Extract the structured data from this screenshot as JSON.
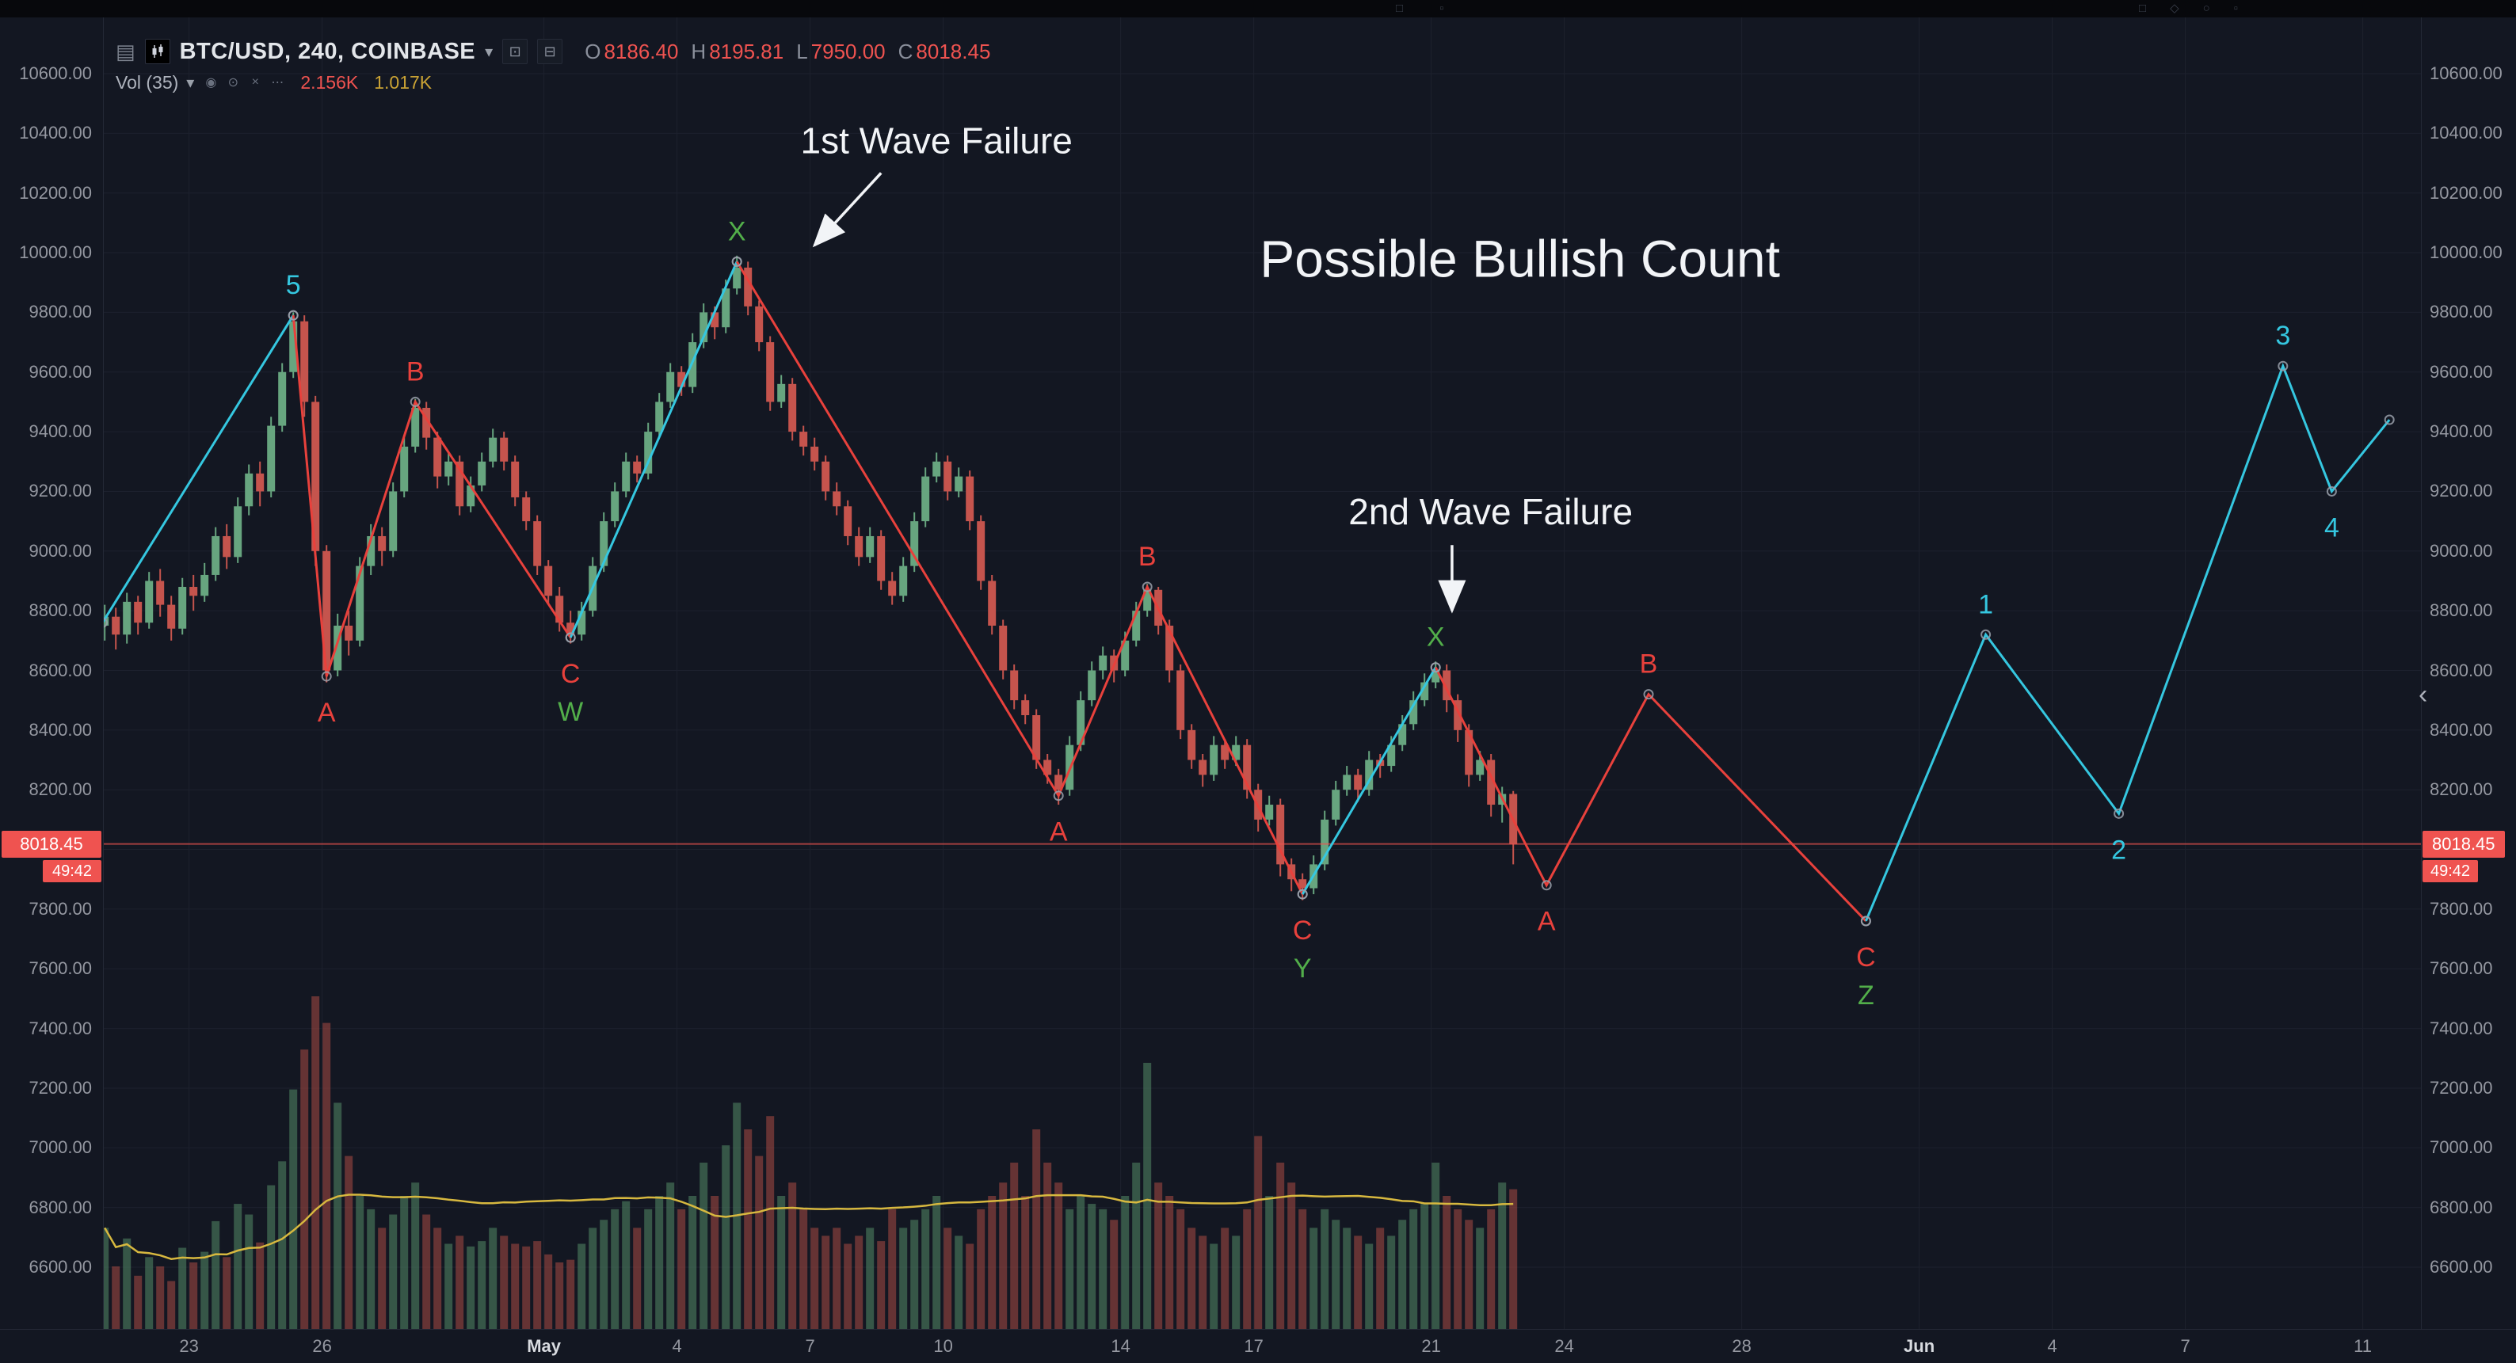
{
  "top_toolbar": {
    "center_icons": [
      {
        "name": "text-tool-icon",
        "glyph": "□"
      },
      {
        "name": "template-icon",
        "glyph": "▫"
      }
    ],
    "right_icons": [
      {
        "name": "layout-panel-icon",
        "glyph": "□"
      },
      {
        "name": "alerts-icon",
        "glyph": "◇"
      },
      {
        "name": "help-icon",
        "glyph": "○"
      },
      {
        "name": "fullscreen-icon",
        "glyph": "▫"
      }
    ]
  },
  "header": {
    "symbol": "BTC/USD, 240, COINBASE",
    "symbol_caret": "▾",
    "ohlc": {
      "o_label": "O",
      "o": "8186.40",
      "h_label": "H",
      "h": "8195.81",
      "l_label": "L",
      "l": "7950.00",
      "c_label": "C",
      "c": "8018.45"
    },
    "indicator": {
      "name": "Vol (35)",
      "caret": "▾",
      "icons": [
        {
          "name": "visibility-icon",
          "glyph": "◉"
        },
        {
          "name": "settings-icon",
          "glyph": "⊙"
        },
        {
          "name": "remove-icon",
          "glyph": "×"
        },
        {
          "name": "more-icon",
          "glyph": "⋯"
        }
      ],
      "current": "2.156K",
      "ma": "1.017K"
    }
  },
  "price_axis": {
    "ticks": [
      10600,
      10400,
      10200,
      10000,
      9800,
      9600,
      9400,
      9200,
      9000,
      8800,
      8600,
      8400,
      8200,
      7800,
      7600,
      7400,
      7200,
      7000,
      6800,
      6600
    ],
    "current_price": "8018.45",
    "countdown": "49:42",
    "collapse_glyph": "‹"
  },
  "time_axis": {
    "ticks": [
      {
        "label": "23",
        "day": 2
      },
      {
        "label": "26",
        "day": 5
      },
      {
        "label": "May",
        "day": 10,
        "month": true
      },
      {
        "label": "4",
        "day": 13
      },
      {
        "label": "7",
        "day": 16
      },
      {
        "label": "10",
        "day": 19
      },
      {
        "label": "14",
        "day": 23
      },
      {
        "label": "17",
        "day": 26
      },
      {
        "label": "21",
        "day": 30
      },
      {
        "label": "24",
        "day": 33
      },
      {
        "label": "28",
        "day": 37
      },
      {
        "label": "Jun",
        "day": 41,
        "month": true
      },
      {
        "label": "4",
        "day": 44
      },
      {
        "label": "7",
        "day": 47
      },
      {
        "label": "11",
        "day": 51
      }
    ]
  },
  "chart_data": {
    "type": "candlestick",
    "symbol": "BTC/USD",
    "interval": "240",
    "exchange": "COINBASE",
    "title": {
      "text": "Possible Bullish Count",
      "t": 32.0,
      "p": 9966
    },
    "price_range_visible": [
      6600,
      10600
    ],
    "price_grid_step": 200,
    "x_unit": "days (0 = left-most candle session, ticks labeled Apr 23 – Jun 11)",
    "candle_t0": 0.1,
    "candle_dt": 0.25,
    "price_line": 8018.45,
    "vol_axis_max": 2500,
    "vol_ma_window": 35,
    "candles": [
      [
        8750,
        8820,
        8700,
        8780,
        760
      ],
      [
        8780,
        8810,
        8670,
        8720,
        470
      ],
      [
        8720,
        8860,
        8690,
        8830,
        680
      ],
      [
        8830,
        8850,
        8720,
        8760,
        400
      ],
      [
        8760,
        8930,
        8740,
        8900,
        540
      ],
      [
        8900,
        8940,
        8780,
        8820,
        470
      ],
      [
        8820,
        8850,
        8700,
        8740,
        360
      ],
      [
        8740,
        8910,
        8720,
        8880,
        610
      ],
      [
        8880,
        8920,
        8800,
        8850,
        500
      ],
      [
        8850,
        8960,
        8830,
        8920,
        580
      ],
      [
        8920,
        9080,
        8900,
        9050,
        810
      ],
      [
        9050,
        9090,
        8940,
        8980,
        540
      ],
      [
        8980,
        9180,
        8960,
        9150,
        940
      ],
      [
        9150,
        9290,
        9120,
        9260,
        860
      ],
      [
        9260,
        9300,
        9150,
        9200,
        650
      ],
      [
        9200,
        9450,
        9180,
        9420,
        1080
      ],
      [
        9420,
        9630,
        9400,
        9600,
        1260
      ],
      [
        9600,
        9800,
        9580,
        9770,
        1800
      ],
      [
        9770,
        9790,
        9450,
        9500,
        2100
      ],
      [
        9500,
        9520,
        8950,
        9000,
        2500
      ],
      [
        9000,
        9020,
        8560,
        8600,
        2300
      ],
      [
        8600,
        8790,
        8580,
        8750,
        1700
      ],
      [
        8750,
        8800,
        8650,
        8700,
        1300
      ],
      [
        8700,
        8980,
        8680,
        8950,
        1000
      ],
      [
        8950,
        9090,
        8920,
        9050,
        900
      ],
      [
        9050,
        9080,
        8950,
        9000,
        760
      ],
      [
        9000,
        9230,
        8980,
        9200,
        860
      ],
      [
        9200,
        9380,
        9180,
        9350,
        1000
      ],
      [
        9350,
        9510,
        9330,
        9480,
        1100
      ],
      [
        9480,
        9500,
        9340,
        9380,
        860
      ],
      [
        9380,
        9400,
        9210,
        9250,
        760
      ],
      [
        9250,
        9330,
        9220,
        9300,
        640
      ],
      [
        9300,
        9320,
        9120,
        9150,
        700
      ],
      [
        9150,
        9250,
        9130,
        9220,
        620
      ],
      [
        9220,
        9330,
        9200,
        9300,
        660
      ],
      [
        9300,
        9410,
        9280,
        9380,
        760
      ],
      [
        9380,
        9400,
        9270,
        9300,
        700
      ],
      [
        9300,
        9320,
        9150,
        9180,
        640
      ],
      [
        9180,
        9200,
        9070,
        9100,
        620
      ],
      [
        9100,
        9120,
        8920,
        8950,
        660
      ],
      [
        8950,
        8970,
        8820,
        8850,
        560
      ],
      [
        8850,
        8880,
        8730,
        8760,
        500
      ],
      [
        8760,
        8800,
        8690,
        8720,
        520
      ],
      [
        8720,
        8830,
        8700,
        8800,
        640
      ],
      [
        8800,
        8980,
        8780,
        8950,
        760
      ],
      [
        8950,
        9130,
        8930,
        9100,
        820
      ],
      [
        9100,
        9230,
        9080,
        9200,
        900
      ],
      [
        9200,
        9330,
        9180,
        9300,
        960
      ],
      [
        9300,
        9320,
        9230,
        9260,
        760
      ],
      [
        9260,
        9430,
        9240,
        9400,
        900
      ],
      [
        9400,
        9530,
        9380,
        9500,
        1000
      ],
      [
        9500,
        9630,
        9480,
        9600,
        1100
      ],
      [
        9600,
        9620,
        9520,
        9550,
        900
      ],
      [
        9550,
        9730,
        9530,
        9700,
        1000
      ],
      [
        9700,
        9830,
        9680,
        9800,
        1250
      ],
      [
        9800,
        9820,
        9710,
        9750,
        1000
      ],
      [
        9750,
        9910,
        9730,
        9880,
        1380
      ],
      [
        9880,
        9990,
        9860,
        9950,
        1700
      ],
      [
        9950,
        9970,
        9790,
        9820,
        1500
      ],
      [
        9820,
        9840,
        9670,
        9700,
        1300
      ],
      [
        9700,
        9720,
        9470,
        9500,
        1600
      ],
      [
        9500,
        9590,
        9480,
        9560,
        1000
      ],
      [
        9560,
        9580,
        9370,
        9400,
        1100
      ],
      [
        9400,
        9420,
        9320,
        9350,
        900
      ],
      [
        9350,
        9380,
        9270,
        9300,
        760
      ],
      [
        9300,
        9320,
        9170,
        9200,
        700
      ],
      [
        9200,
        9230,
        9120,
        9150,
        760
      ],
      [
        9150,
        9170,
        9020,
        9050,
        640
      ],
      [
        9050,
        9080,
        8950,
        8980,
        700
      ],
      [
        8980,
        9080,
        8960,
        9050,
        760
      ],
      [
        9050,
        9070,
        8870,
        8900,
        660
      ],
      [
        8900,
        8930,
        8820,
        8850,
        900
      ],
      [
        8850,
        8980,
        8830,
        8950,
        760
      ],
      [
        8950,
        9130,
        8930,
        9100,
        820
      ],
      [
        9100,
        9280,
        9080,
        9250,
        900
      ],
      [
        9250,
        9330,
        9230,
        9300,
        1000
      ],
      [
        9300,
        9320,
        9170,
        9200,
        760
      ],
      [
        9200,
        9280,
        9180,
        9250,
        700
      ],
      [
        9250,
        9270,
        9070,
        9100,
        640
      ],
      [
        9100,
        9120,
        8870,
        8900,
        900
      ],
      [
        8900,
        8920,
        8720,
        8750,
        1000
      ],
      [
        8750,
        8770,
        8570,
        8600,
        1100
      ],
      [
        8600,
        8620,
        8470,
        8500,
        1250
      ],
      [
        8500,
        8520,
        8420,
        8450,
        1000
      ],
      [
        8450,
        8470,
        8270,
        8300,
        1500
      ],
      [
        8300,
        8320,
        8220,
        8250,
        1250
      ],
      [
        8250,
        8270,
        8150,
        8200,
        1100
      ],
      [
        8200,
        8380,
        8180,
        8350,
        900
      ],
      [
        8350,
        8530,
        8330,
        8500,
        1000
      ],
      [
        8500,
        8630,
        8480,
        8600,
        940
      ],
      [
        8600,
        8680,
        8570,
        8650,
        900
      ],
      [
        8650,
        8670,
        8560,
        8600,
        820
      ],
      [
        8600,
        8730,
        8580,
        8700,
        1000
      ],
      [
        8700,
        8830,
        8680,
        8800,
        1250
      ],
      [
        8800,
        8890,
        8780,
        8870,
        2000
      ],
      [
        8870,
        8880,
        8720,
        8750,
        1100
      ],
      [
        8750,
        8770,
        8560,
        8600,
        1000
      ],
      [
        8600,
        8620,
        8370,
        8400,
        900
      ],
      [
        8400,
        8420,
        8270,
        8300,
        760
      ],
      [
        8300,
        8320,
        8210,
        8250,
        700
      ],
      [
        8250,
        8380,
        8230,
        8350,
        640
      ],
      [
        8350,
        8370,
        8270,
        8300,
        760
      ],
      [
        8300,
        8380,
        8280,
        8350,
        700
      ],
      [
        8350,
        8370,
        8170,
        8200,
        900
      ],
      [
        8200,
        8220,
        8060,
        8100,
        1450
      ],
      [
        8100,
        8180,
        8080,
        8150,
        1000
      ],
      [
        8150,
        8170,
        7910,
        7950,
        1250
      ],
      [
        7950,
        7970,
        7860,
        7900,
        1100
      ],
      [
        7900,
        7920,
        7830,
        7870,
        900
      ],
      [
        7870,
        7980,
        7850,
        7950,
        760
      ],
      [
        7950,
        8130,
        7930,
        8100,
        900
      ],
      [
        8100,
        8230,
        8080,
        8200,
        820
      ],
      [
        8200,
        8280,
        8180,
        8250,
        760
      ],
      [
        8250,
        8270,
        8160,
        8200,
        700
      ],
      [
        8200,
        8330,
        8180,
        8300,
        640
      ],
      [
        8300,
        8320,
        8240,
        8280,
        760
      ],
      [
        8280,
        8380,
        8260,
        8350,
        700
      ],
      [
        8350,
        8450,
        8330,
        8420,
        820
      ],
      [
        8420,
        8530,
        8400,
        8500,
        900
      ],
      [
        8500,
        8590,
        8480,
        8560,
        940
      ],
      [
        8560,
        8630,
        8540,
        8600,
        1250
      ],
      [
        8600,
        8620,
        8460,
        8500,
        1000
      ],
      [
        8500,
        8520,
        8360,
        8400,
        900
      ],
      [
        8400,
        8420,
        8210,
        8250,
        820
      ],
      [
        8250,
        8330,
        8230,
        8300,
        760
      ],
      [
        8300,
        8320,
        8110,
        8150,
        900
      ],
      [
        8150,
        8210,
        8090,
        8186,
        1100
      ],
      [
        8186,
        8196,
        7950,
        8018,
        1050
      ]
    ],
    "waves": [
      {
        "color": "cyan",
        "points": [
          [
            0.05,
            8760
          ],
          [
            4.35,
            9790
          ]
        ]
      },
      {
        "color": "red",
        "points": [
          [
            4.35,
            9790
          ],
          [
            5.1,
            8580
          ],
          [
            7.1,
            9500
          ],
          [
            10.6,
            8710
          ]
        ]
      },
      {
        "color": "cyan",
        "points": [
          [
            10.6,
            8710
          ],
          [
            14.35,
            9970
          ]
        ]
      },
      {
        "color": "red",
        "points": [
          [
            14.35,
            9970
          ],
          [
            21.6,
            8180
          ],
          [
            23.6,
            8880
          ],
          [
            27.1,
            7850
          ]
        ]
      },
      {
        "color": "cyan",
        "points": [
          [
            27.1,
            7850
          ],
          [
            30.1,
            8610
          ]
        ]
      },
      {
        "color": "red",
        "points": [
          [
            30.1,
            8610
          ],
          [
            32.6,
            7880
          ],
          [
            34.9,
            8520
          ],
          [
            39.8,
            7760
          ]
        ]
      },
      {
        "color": "cyan",
        "points": [
          [
            39.8,
            7760
          ],
          [
            42.5,
            8720
          ],
          [
            45.5,
            8120
          ],
          [
            49.2,
            9620
          ],
          [
            50.3,
            9200
          ],
          [
            51.6,
            9440
          ]
        ]
      }
    ],
    "wave_labels": [
      {
        "t": 4.35,
        "p": 9790,
        "text": "5",
        "color": "cyan",
        "pos": "above"
      },
      {
        "t": 5.1,
        "p": 8580,
        "text": "A",
        "color": "red",
        "pos": "below"
      },
      {
        "t": 7.1,
        "p": 9500,
        "text": "B",
        "color": "red",
        "pos": "above"
      },
      {
        "t": 10.6,
        "p": 8710,
        "text": "C",
        "color": "red",
        "pos": "below"
      },
      {
        "t": 10.6,
        "p": 8710,
        "text": "W",
        "color": "green",
        "pos": "below2"
      },
      {
        "t": 14.35,
        "p": 9970,
        "text": "X",
        "color": "green",
        "pos": "above"
      },
      {
        "t": 21.6,
        "p": 8180,
        "text": "A",
        "color": "red",
        "pos": "below"
      },
      {
        "t": 23.6,
        "p": 8880,
        "text": "B",
        "color": "red",
        "pos": "above"
      },
      {
        "t": 27.1,
        "p": 7850,
        "text": "C",
        "color": "red",
        "pos": "below"
      },
      {
        "t": 27.1,
        "p": 7850,
        "text": "Y",
        "color": "green",
        "pos": "below2"
      },
      {
        "t": 30.1,
        "p": 8610,
        "text": "X",
        "color": "green",
        "pos": "above"
      },
      {
        "t": 32.6,
        "p": 7880,
        "text": "A",
        "color": "red",
        "pos": "below"
      },
      {
        "t": 34.9,
        "p": 8520,
        "text": "B",
        "color": "red",
        "pos": "above"
      },
      {
        "t": 39.8,
        "p": 7760,
        "text": "C",
        "color": "red",
        "pos": "below"
      },
      {
        "t": 39.8,
        "p": 7760,
        "text": "Z",
        "color": "green",
        "pos": "below2"
      },
      {
        "t": 42.5,
        "p": 8720,
        "text": "1",
        "color": "cyan",
        "pos": "above"
      },
      {
        "t": 45.5,
        "p": 8120,
        "text": "2",
        "color": "cyan",
        "pos": "below"
      },
      {
        "t": 49.2,
        "p": 9620,
        "text": "3",
        "color": "cyan",
        "pos": "above"
      },
      {
        "t": 50.3,
        "p": 9200,
        "text": "4",
        "color": "cyan",
        "pos": "below"
      }
    ],
    "callouts": [
      {
        "text": "1st Wave Failure",
        "t": 18.85,
        "p": 10365,
        "arrow_from": [
          17.6,
          10267
        ],
        "arrow_to": [
          16.1,
          10025
        ]
      },
      {
        "text": "2nd Wave Failure",
        "t": 31.34,
        "p": 9122,
        "arrow_from": [
          30.47,
          9020
        ],
        "arrow_to": [
          30.47,
          8800
        ]
      }
    ]
  },
  "colors": {
    "background": "#131722",
    "grid": "#1d212e",
    "axis_text": "#9598a1",
    "up": "#67a57f",
    "down": "#c5544d",
    "vol_up": "rgba(84,138,102,0.55)",
    "vol_down": "rgba(170,74,68,0.55)",
    "vol_ma": "#d7b83f",
    "wave_cyan": "#35c7e0",
    "wave_red": "#e8413c",
    "label_green": "#52ae4a",
    "annotation_white": "#f2f4f7",
    "price_badge": "#ef5350",
    "price_line": "#ef5350"
  }
}
